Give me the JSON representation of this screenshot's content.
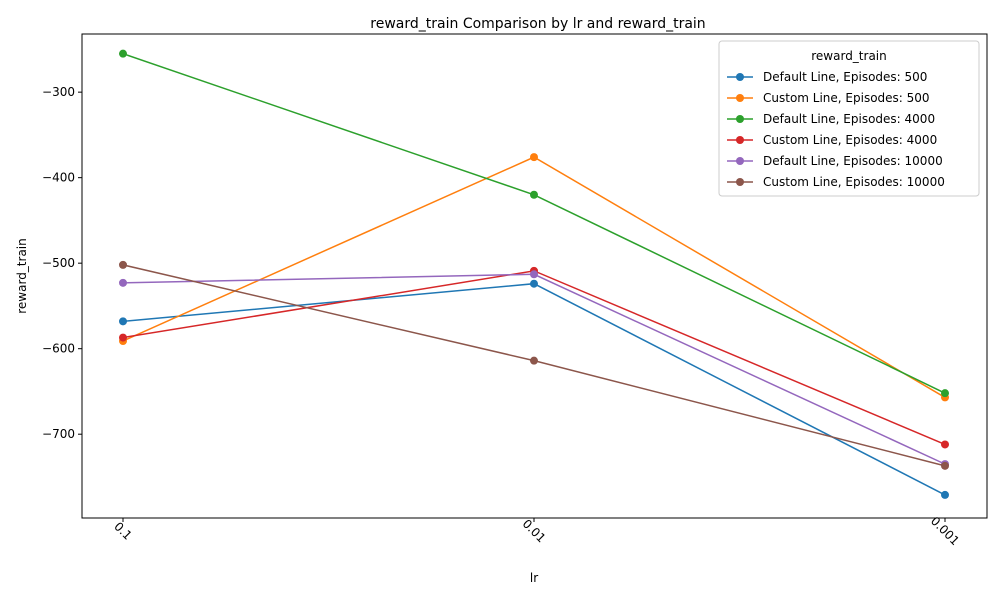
{
  "chart_data": {
    "type": "line",
    "title": "reward_train Comparison by lr and reward_train",
    "xlabel": "lr",
    "ylabel": "reward_train",
    "categories": [
      "0.1",
      "0.01",
      "0.001"
    ],
    "ylim": [
      -798,
      -232
    ],
    "yticks": [
      -700,
      -600,
      -500,
      -400,
      -300
    ],
    "ytick_labels": [
      "−700",
      "−600",
      "−500",
      "−400",
      "−300"
    ],
    "grid": false,
    "legend": {
      "title": "reward_train",
      "placement": "top-right"
    },
    "series": [
      {
        "name": "Default Line, Episodes: 500",
        "color": "#1f77b4",
        "values": [
          -568,
          -524,
          -771
        ]
      },
      {
        "name": "Custom Line, Episodes: 500",
        "color": "#ff7f0e",
        "values": [
          -591,
          -376,
          -657
        ]
      },
      {
        "name": "Default Line, Episodes: 4000",
        "color": "#2ca02c",
        "values": [
          -255,
          -420,
          -652
        ]
      },
      {
        "name": "Custom Line, Episodes: 4000",
        "color": "#d62728",
        "values": [
          -587,
          -509,
          -712
        ]
      },
      {
        "name": "Default Line, Episodes: 10000",
        "color": "#9467bd",
        "values": [
          -523,
          -513,
          -735
        ]
      },
      {
        "name": "Custom Line, Episodes: 10000",
        "color": "#8c564b",
        "values": [
          -502,
          -614,
          -737
        ]
      }
    ]
  }
}
